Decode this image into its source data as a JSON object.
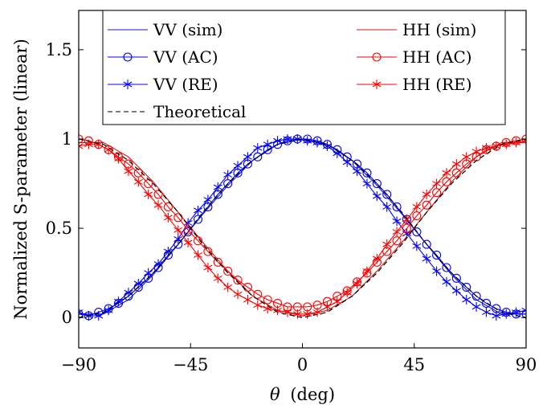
{
  "chart_data": {
    "type": "line",
    "xlabel_symbol": "θ",
    "xlabel_unit": "(deg)",
    "ylabel": "Normalized S-parameter (linear)",
    "xlim": [
      -90,
      90
    ],
    "ylim": [
      -0.17,
      1.72
    ],
    "x_ticks": [
      -90,
      -45,
      0,
      45,
      90
    ],
    "x_tick_labels": [
      "−90",
      "−45",
      "0",
      "45",
      "90"
    ],
    "y_ticks": [
      0,
      0.5,
      1,
      1.5
    ],
    "y_tick_labels": [
      "0",
      "0.5",
      "1",
      "1.5"
    ],
    "grid": false,
    "legend_position": "top",
    "colors": {
      "vv": "#0000ff",
      "hh": "#ff0000",
      "theory": "#000000"
    },
    "series": [
      {
        "name": "VV (sim)",
        "key": "vv_sim",
        "color": "#1a1acc",
        "marker": "none",
        "dash": "solid",
        "x": [
          -90,
          -80,
          -70,
          -60,
          -50,
          -40,
          -30,
          -20,
          -10,
          0,
          10,
          20,
          30,
          40,
          50,
          60,
          70,
          80,
          90
        ],
        "y": [
          0.02,
          0.02,
          0.1,
          0.24,
          0.41,
          0.58,
          0.74,
          0.88,
          0.97,
          1.0,
          0.97,
          0.88,
          0.74,
          0.58,
          0.41,
          0.24,
          0.1,
          0.02,
          0.02
        ]
      },
      {
        "name": "VV (AC)",
        "key": "vv_ac",
        "color": "#0000ff",
        "marker": "circle",
        "dash": "solid",
        "x": [
          -90,
          -86,
          -82,
          -78,
          -74,
          -70,
          -66,
          -62,
          -58,
          -54,
          -50,
          -46,
          -42,
          -38,
          -34,
          -30,
          -26,
          -22,
          -18,
          -14,
          -10,
          -6,
          -2,
          2,
          6,
          10,
          14,
          18,
          22,
          26,
          30,
          34,
          38,
          42,
          46,
          50,
          54,
          58,
          62,
          66,
          70,
          74,
          78,
          82,
          86,
          90
        ],
        "y": [
          0.02,
          0.01,
          0.03,
          0.05,
          0.08,
          0.12,
          0.17,
          0.22,
          0.28,
          0.35,
          0.41,
          0.48,
          0.55,
          0.62,
          0.69,
          0.75,
          0.81,
          0.86,
          0.9,
          0.94,
          0.97,
          0.99,
          1.0,
          1.0,
          0.99,
          0.97,
          0.94,
          0.9,
          0.86,
          0.81,
          0.75,
          0.69,
          0.62,
          0.55,
          0.48,
          0.41,
          0.35,
          0.28,
          0.22,
          0.17,
          0.12,
          0.08,
          0.05,
          0.03,
          0.02,
          0.02
        ]
      },
      {
        "name": "VV (RE)",
        "key": "vv_re",
        "color": "#0000ff",
        "marker": "star",
        "dash": "solid",
        "x": [
          -90,
          -86,
          -82,
          -78,
          -74,
          -70,
          -66,
          -62,
          -58,
          -54,
          -50,
          -46,
          -42,
          -38,
          -34,
          -30,
          -26,
          -22,
          -18,
          -14,
          -10,
          -6,
          -2,
          2,
          6,
          10,
          14,
          18,
          22,
          26,
          30,
          34,
          38,
          42,
          46,
          50,
          54,
          58,
          62,
          66,
          70,
          74,
          78,
          82,
          86,
          90
        ],
        "y": [
          0.03,
          0.01,
          0.01,
          0.04,
          0.09,
          0.14,
          0.19,
          0.25,
          0.3,
          0.37,
          0.44,
          0.53,
          0.6,
          0.66,
          0.73,
          0.8,
          0.85,
          0.9,
          0.95,
          0.97,
          0.99,
          1.0,
          1.0,
          0.99,
          0.98,
          0.96,
          0.92,
          0.87,
          0.82,
          0.75,
          0.68,
          0.62,
          0.54,
          0.47,
          0.4,
          0.33,
          0.26,
          0.2,
          0.15,
          0.1,
          0.06,
          0.03,
          0.01,
          0.02,
          0.03,
          0.04
        ]
      },
      {
        "name": "HH (sim)",
        "key": "hh_sim",
        "color": "#cc1a1a",
        "marker": "none",
        "dash": "solid",
        "x": [
          -90,
          -80,
          -70,
          -60,
          -50,
          -40,
          -30,
          -20,
          -10,
          0,
          10,
          20,
          30,
          40,
          50,
          60,
          70,
          80,
          90
        ],
        "y": [
          0.98,
          0.98,
          0.9,
          0.76,
          0.59,
          0.42,
          0.26,
          0.12,
          0.04,
          0.01,
          0.04,
          0.12,
          0.26,
          0.42,
          0.59,
          0.76,
          0.9,
          0.98,
          0.98
        ]
      },
      {
        "name": "HH (AC)",
        "key": "hh_ac",
        "color": "#ff0000",
        "marker": "circle",
        "dash": "solid",
        "x": [
          -90,
          -86,
          -82,
          -78,
          -74,
          -70,
          -66,
          -62,
          -58,
          -54,
          -50,
          -46,
          -42,
          -38,
          -34,
          -30,
          -26,
          -22,
          -18,
          -14,
          -10,
          -6,
          -2,
          2,
          6,
          10,
          14,
          18,
          22,
          26,
          30,
          34,
          38,
          42,
          46,
          50,
          54,
          58,
          62,
          66,
          70,
          74,
          78,
          82,
          86,
          90
        ],
        "y": [
          1.0,
          0.99,
          0.97,
          0.94,
          0.9,
          0.86,
          0.81,
          0.75,
          0.69,
          0.62,
          0.56,
          0.49,
          0.43,
          0.37,
          0.31,
          0.26,
          0.21,
          0.17,
          0.13,
          0.1,
          0.08,
          0.06,
          0.06,
          0.06,
          0.07,
          0.09,
          0.12,
          0.15,
          0.2,
          0.25,
          0.31,
          0.37,
          0.43,
          0.5,
          0.57,
          0.63,
          0.7,
          0.76,
          0.81,
          0.86,
          0.9,
          0.94,
          0.96,
          0.98,
          0.99,
          1.0
        ]
      },
      {
        "name": "HH (RE)",
        "key": "hh_re",
        "color": "#ff0000",
        "marker": "star",
        "dash": "solid",
        "x": [
          -90,
          -86,
          -82,
          -78,
          -74,
          -70,
          -66,
          -62,
          -58,
          -54,
          -50,
          -46,
          -42,
          -38,
          -34,
          -30,
          -26,
          -22,
          -18,
          -14,
          -10,
          -6,
          -2,
          2,
          6,
          10,
          14,
          18,
          22,
          26,
          30,
          34,
          38,
          42,
          46,
          50,
          54,
          58,
          62,
          66,
          70,
          74,
          78,
          82,
          86,
          90
        ],
        "y": [
          0.96,
          0.97,
          0.97,
          0.94,
          0.89,
          0.82,
          0.76,
          0.69,
          0.63,
          0.56,
          0.49,
          0.42,
          0.35,
          0.28,
          0.22,
          0.17,
          0.13,
          0.1,
          0.07,
          0.05,
          0.04,
          0.03,
          0.02,
          0.02,
          0.03,
          0.06,
          0.09,
          0.14,
          0.19,
          0.26,
          0.33,
          0.41,
          0.48,
          0.55,
          0.62,
          0.69,
          0.75,
          0.81,
          0.86,
          0.9,
          0.93,
          0.95,
          0.96,
          0.97,
          0.98,
          0.99
        ]
      },
      {
        "name": "Theoretical",
        "key": "theory",
        "color": "#000000",
        "marker": "none",
        "dash": "dashed",
        "x": [
          -90,
          -80,
          -70,
          -60,
          -50,
          -40,
          -30,
          -20,
          -10,
          0,
          10,
          20,
          30,
          40,
          50,
          60,
          70,
          80,
          90
        ],
        "y": [
          0,
          0.03,
          0.12,
          0.25,
          0.41,
          0.59,
          0.75,
          0.88,
          0.97,
          1.0,
          0.97,
          0.88,
          0.75,
          0.59,
          0.41,
          0.25,
          0.12,
          0.03,
          0
        ]
      },
      {
        "name": "",
        "key": "theory2",
        "color": "#000000",
        "marker": "none",
        "dash": "dashed",
        "x": [
          -90,
          -80,
          -70,
          -60,
          -50,
          -40,
          -30,
          -20,
          -10,
          0,
          10,
          20,
          30,
          40,
          50,
          60,
          70,
          80,
          90
        ],
        "y": [
          1.0,
          0.97,
          0.88,
          0.75,
          0.59,
          0.41,
          0.25,
          0.12,
          0.03,
          0,
          0.03,
          0.12,
          0.25,
          0.41,
          0.59,
          0.75,
          0.88,
          0.97,
          1.0
        ]
      }
    ],
    "legend": [
      {
        "label": "VV (sim)",
        "series": "vv_sim"
      },
      {
        "label": "HH (sim)",
        "series": "hh_sim"
      },
      {
        "label": "VV (AC)",
        "series": "vv_ac"
      },
      {
        "label": "HH (AC)",
        "series": "hh_ac"
      },
      {
        "label": "VV (RE)",
        "series": "vv_re"
      },
      {
        "label": "HH (RE)",
        "series": "hh_re"
      },
      {
        "label": "Theoretical",
        "series": "theory"
      }
    ]
  }
}
